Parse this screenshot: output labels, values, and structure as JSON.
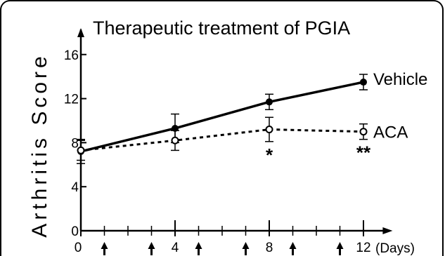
{
  "chart_data": {
    "type": "line",
    "title": "Therapeutic treatment of PGIA",
    "xlabel": "",
    "ylabel": "Arthritis Score",
    "x_unit_label": "(Days)",
    "x_ticks": [
      "0",
      "4",
      "8",
      "12"
    ],
    "y_ticks": [
      "0",
      "4",
      "8",
      "12",
      "16"
    ],
    "xlim": [
      0,
      12.4
    ],
    "ylim": [
      0,
      17.5
    ],
    "x": [
      0,
      4,
      8,
      12
    ],
    "series": [
      {
        "name": "Vehicle",
        "values": [
          7.2,
          9.3,
          11.7,
          13.5
        ],
        "errors": [
          1.1,
          1.3,
          0.7,
          0.7
        ],
        "line": "solid",
        "marker": "filled-circle"
      },
      {
        "name": "ACA",
        "values": [
          7.3,
          8.2,
          9.2,
          9.0
        ],
        "errors": [
          0.9,
          0.9,
          1.1,
          0.7
        ],
        "line": "dashed",
        "marker": "open-circle"
      }
    ],
    "annotations": [
      {
        "text": "*",
        "x": 8,
        "series": "ACA"
      },
      {
        "text": "**",
        "x": 12,
        "series": "ACA"
      }
    ],
    "treatment_days": [
      1,
      3,
      5,
      7,
      9,
      11
    ],
    "colors": {
      "line": "#000000",
      "background": "#ffffff"
    },
    "grid": false,
    "legend": "inline labels at line ends"
  }
}
